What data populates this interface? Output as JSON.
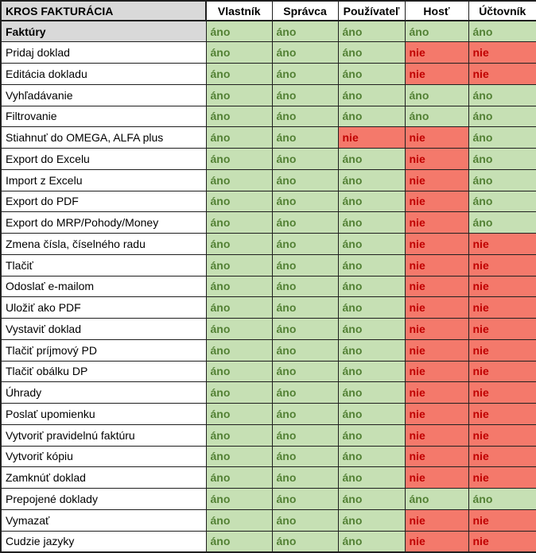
{
  "table": {
    "title": "KROS FAKTURÁCIA",
    "columns": [
      "Vlastník",
      "Správca",
      "Používateľ",
      "Hosť",
      "Účtovník"
    ],
    "yes_label": "áno",
    "no_label": "nie",
    "colors": {
      "yes_bg": "#c6e0b4",
      "yes_text": "#538135",
      "no_bg": "#f4796b",
      "no_text": "#c00000",
      "header_bg": "#d9d9d9",
      "header_col_bg": "#ffffff",
      "border": "#1f1f1f"
    },
    "rows": [
      {
        "label": "Faktúry",
        "section": true,
        "values": [
          "áno",
          "áno",
          "áno",
          "áno",
          "áno"
        ]
      },
      {
        "label": "Pridaj doklad",
        "section": false,
        "values": [
          "áno",
          "áno",
          "áno",
          "nie",
          "nie"
        ]
      },
      {
        "label": "Editácia dokladu",
        "section": false,
        "values": [
          "áno",
          "áno",
          "áno",
          "nie",
          "nie"
        ]
      },
      {
        "label": "Vyhľadávanie",
        "section": false,
        "values": [
          "áno",
          "áno",
          "áno",
          "áno",
          "áno"
        ]
      },
      {
        "label": "Filtrovanie",
        "section": false,
        "values": [
          "áno",
          "áno",
          "áno",
          "áno",
          "áno"
        ]
      },
      {
        "label": "Stiahnuť do OMEGA, ALFA plus",
        "section": false,
        "values": [
          "áno",
          "áno",
          "nie",
          "nie",
          "áno"
        ]
      },
      {
        "label": "Export do Excelu",
        "section": false,
        "values": [
          "áno",
          "áno",
          "áno",
          "nie",
          "áno"
        ]
      },
      {
        "label": "Import z Excelu",
        "section": false,
        "values": [
          "áno",
          "áno",
          "áno",
          "nie",
          "áno"
        ]
      },
      {
        "label": "Export do PDF",
        "section": false,
        "values": [
          "áno",
          "áno",
          "áno",
          "nie",
          "áno"
        ]
      },
      {
        "label": "Export do MRP/Pohody/Money",
        "section": false,
        "values": [
          "áno",
          "áno",
          "áno",
          "nie",
          "áno"
        ]
      },
      {
        "label": "Zmena čísla, číselného radu",
        "section": false,
        "values": [
          "áno",
          "áno",
          "áno",
          "nie",
          "nie"
        ]
      },
      {
        "label": "Tlačiť",
        "section": false,
        "values": [
          "áno",
          "áno",
          "áno",
          "nie",
          "nie"
        ]
      },
      {
        "label": "Odoslať e-mailom",
        "section": false,
        "values": [
          "áno",
          "áno",
          "áno",
          "nie",
          "nie"
        ]
      },
      {
        "label": "Uložiť ako PDF",
        "section": false,
        "values": [
          "áno",
          "áno",
          "áno",
          "nie",
          "nie"
        ]
      },
      {
        "label": "Vystaviť doklad",
        "section": false,
        "values": [
          "áno",
          "áno",
          "áno",
          "nie",
          "nie"
        ]
      },
      {
        "label": "Tlačiť príjmový PD",
        "section": false,
        "values": [
          "áno",
          "áno",
          "áno",
          "nie",
          "nie"
        ]
      },
      {
        "label": "Tlačiť obálku DP",
        "section": false,
        "values": [
          "áno",
          "áno",
          "áno",
          "nie",
          "nie"
        ]
      },
      {
        "label": "Úhrady",
        "section": false,
        "values": [
          "áno",
          "áno",
          "áno",
          "nie",
          "nie"
        ]
      },
      {
        "label": "Poslať upomienku",
        "section": false,
        "values": [
          "áno",
          "áno",
          "áno",
          "nie",
          "nie"
        ]
      },
      {
        "label": "Vytvoriť pravidelnú faktúru",
        "section": false,
        "values": [
          "áno",
          "áno",
          "áno",
          "nie",
          "nie"
        ]
      },
      {
        "label": "Vytvoriť kópiu",
        "section": false,
        "values": [
          "áno",
          "áno",
          "áno",
          "nie",
          "nie"
        ]
      },
      {
        "label": "Zamknúť doklad",
        "section": false,
        "values": [
          "áno",
          "áno",
          "áno",
          "nie",
          "nie"
        ]
      },
      {
        "label": "Prepojené doklady",
        "section": false,
        "values": [
          "áno",
          "áno",
          "áno",
          "áno",
          "áno"
        ]
      },
      {
        "label": "Vymazať",
        "section": false,
        "values": [
          "áno",
          "áno",
          "áno",
          "nie",
          "nie"
        ]
      },
      {
        "label": "Cudzie jazyky",
        "section": false,
        "values": [
          "áno",
          "áno",
          "áno",
          "nie",
          "nie"
        ]
      }
    ]
  }
}
